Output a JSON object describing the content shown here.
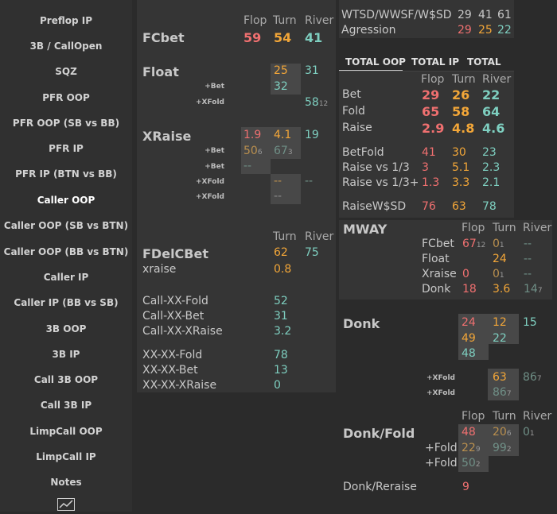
{
  "sidebar": {
    "items": [
      {
        "label": "Preflop IP"
      },
      {
        "label": "3B / CallOpen"
      },
      {
        "label": "SQZ"
      },
      {
        "label": "PFR OOP"
      },
      {
        "label": "PFR OOP (SB vs BB)"
      },
      {
        "label": "PFR IP"
      },
      {
        "label": "PFR IP (BTN vs BB)"
      },
      {
        "label": "Caller OOP"
      },
      {
        "label": "Caller OOP (SB vs BTN)"
      },
      {
        "label": "Caller OOP (BB vs BTN)"
      },
      {
        "label": "Caller IP"
      },
      {
        "label": "Caller IP (BB vs SB)"
      },
      {
        "label": "3B OOP"
      },
      {
        "label": "3B IP"
      },
      {
        "label": "Call 3B OOP"
      },
      {
        "label": "Call 3B IP"
      },
      {
        "label": "LimpCall OOP"
      },
      {
        "label": "LimpCall IP"
      },
      {
        "label": "Notes"
      }
    ],
    "active": "Caller OOP",
    "chart_icon": "line-chart-icon"
  },
  "headers": {
    "flop": "Flop",
    "turn": "Turn",
    "river": "River"
  },
  "left": {
    "fcbet": {
      "label": "FCbet",
      "flop": "59",
      "turn": "54",
      "river": "41"
    },
    "float": {
      "label": "Float",
      "turn": "25",
      "river": "31",
      "bet_label": "+Bet",
      "bet_turn": "32",
      "xfold_label": "+XFold",
      "xfold_river": "58",
      "xfold_river_n": "12"
    },
    "xraise": {
      "label": "XRaise",
      "flop": "1.9",
      "turn": "4.1",
      "river": "19",
      "bet1_label": "+Bet",
      "bet1_flop": "50",
      "bet1_flop_n": "6",
      "bet1_turn": "67",
      "bet1_turn_n": "3",
      "bet2_label": "+Bet",
      "bet2_flop": "--",
      "xfold1_label": "+XFold",
      "xfold1_turn": "--",
      "xfold1_river": "--",
      "xfold2_label": "+XFold",
      "xfold2_turn": "--"
    },
    "fdelcbet": {
      "label": "FDelCBet",
      "turn": "62",
      "river": "75",
      "xraise_label": "xraise",
      "xraise_turn": "0.8"
    },
    "call_xx": [
      {
        "label": "Call-XX-Fold",
        "value": "52"
      },
      {
        "label": "Call-XX-Bet",
        "value": "31"
      },
      {
        "label": "Call-XX-XRaise",
        "value": "3.2"
      }
    ],
    "xx_xx": [
      {
        "label": "XX-XX-Fold",
        "value": "78"
      },
      {
        "label": "XX-XX-Bet",
        "value": "13"
      },
      {
        "label": "XX-XX-XRaise",
        "value": "0"
      }
    ]
  },
  "right": {
    "wtsd": {
      "label": "WTSD/WWSF/W$SD",
      "v1": "29",
      "v2": "41",
      "v3": "61"
    },
    "agression": {
      "label": "Agression",
      "v1": "29",
      "v2": "25",
      "v3": "22"
    },
    "tabs": [
      "TOTAL OOP",
      "TOTAL IP",
      "TOTAL"
    ],
    "total": {
      "bet": {
        "label": "Bet",
        "flop": "29",
        "turn": "26",
        "river": "22"
      },
      "fold": {
        "label": "Fold",
        "flop": "65",
        "turn": "58",
        "river": "64"
      },
      "raise": {
        "label": "Raise",
        "flop": "2.9",
        "turn": "4.8",
        "river": "4.6"
      },
      "betfold": {
        "label": "BetFold",
        "flop": "41",
        "turn": "30",
        "river": "23"
      },
      "raise13": {
        "label": "Raise vs 1/3",
        "flop": "3",
        "turn": "5.1",
        "river": "2.3"
      },
      "raise13p": {
        "label": "Raise vs 1/3+",
        "flop": "1.3",
        "turn": "3.3",
        "river": "2.1"
      },
      "raisewsd": {
        "label": "RaiseW$SD",
        "flop": "76",
        "turn": "63",
        "river": "78"
      }
    },
    "mway": {
      "label": "MWAY",
      "fcbet": {
        "label": "FCbet",
        "flop": "67",
        "flop_n": "12",
        "turn": "0",
        "turn_n": "1",
        "river": "--"
      },
      "float": {
        "label": "Float",
        "turn": "24",
        "river": "--"
      },
      "xraise": {
        "label": "Xraise",
        "flop": "0",
        "turn": "0",
        "turn_n": "1",
        "river": "--"
      },
      "donk": {
        "label": "Donk",
        "flop": "18",
        "turn": "3.6",
        "river": "14",
        "river_n": "7"
      }
    },
    "donk": {
      "label": "Donk",
      "r1": {
        "flop": "24",
        "turn": "12",
        "river": "15"
      },
      "r2": {
        "flop": "49",
        "turn": "22"
      },
      "r3": {
        "flop": "48"
      },
      "xfold1": {
        "label": "+XFold",
        "turn": "63",
        "river": "86",
        "river_n": "7"
      },
      "xfold2": {
        "label": "+XFold",
        "turn": "86",
        "turn_n": "7"
      }
    },
    "donkfold": {
      "label": "Donk/Fold",
      "main": {
        "flop": "48",
        "turn": "20",
        "turn_n": "6",
        "river": "0",
        "river_n": "1"
      },
      "fold1": {
        "label": "+Fold",
        "flop": "22",
        "flop_n": "9",
        "turn": "99",
        "turn_n": "2"
      },
      "fold2": {
        "label": "+Fold",
        "flop": "50",
        "flop_n": "2"
      }
    },
    "donkreraise": {
      "label": "Donk/Reraise",
      "flop": "9"
    }
  }
}
